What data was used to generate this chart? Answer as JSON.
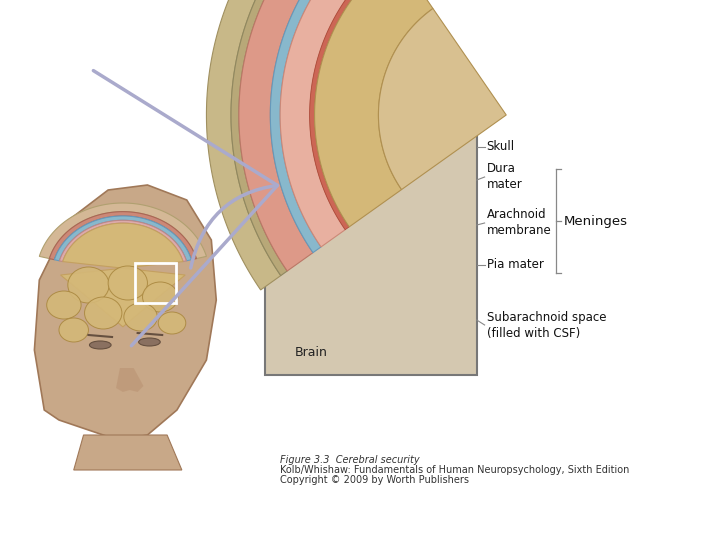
{
  "background_color": "#ffffff",
  "caption_lines": [
    "Figure 3.3  Cerebral security",
    "Kolb/Whishaw: Fundamentals of Human Neuropsychology, Sixth Edition",
    "Copyright © 2009 by Worth Publishers"
  ],
  "caption_fontsize": 7.0,
  "caption_color": "#333333",
  "skin_color": "#c8a888",
  "skin_mid": "#b89070",
  "skin_dark": "#a07858",
  "skull_bone": "#d4b896",
  "skull_outer": "#c8b888",
  "dura_color": "#cc8888",
  "pink_color": "#e8a898",
  "red_color": "#cc6655",
  "blue_color": "#88b8cc",
  "brain_color": "#d4b878",
  "brain_dark": "#c4a060",
  "box_bg": "#e8d8c0",
  "label_fontsize": 8.5,
  "line_color": "#888888"
}
